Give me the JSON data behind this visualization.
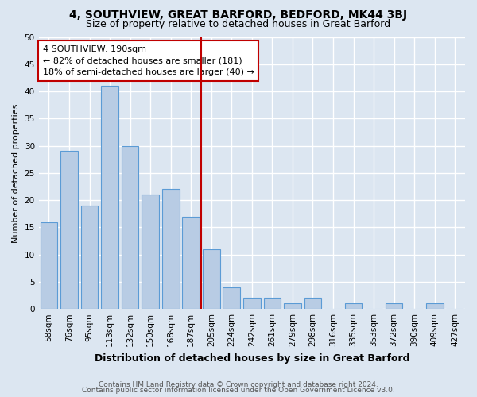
{
  "title": "4, SOUTHVIEW, GREAT BARFORD, BEDFORD, MK44 3BJ",
  "subtitle": "Size of property relative to detached houses in Great Barford",
  "xlabel": "Distribution of detached houses by size in Great Barford",
  "ylabel": "Number of detached properties",
  "categories": [
    "58sqm",
    "76sqm",
    "95sqm",
    "113sqm",
    "132sqm",
    "150sqm",
    "168sqm",
    "187sqm",
    "205sqm",
    "224sqm",
    "242sqm",
    "261sqm",
    "279sqm",
    "298sqm",
    "316sqm",
    "335sqm",
    "353sqm",
    "372sqm",
    "390sqm",
    "409sqm",
    "427sqm"
  ],
  "values": [
    16,
    29,
    19,
    41,
    30,
    21,
    22,
    17,
    11,
    4,
    2,
    2,
    1,
    2,
    0,
    1,
    0,
    1,
    0,
    1,
    0
  ],
  "bar_color": "#b8cce4",
  "bar_edge_color": "#5b9bd5",
  "background_color": "#dce6f1",
  "plot_bg_color": "#dce6f1",
  "grid_color": "#ffffff",
  "vline_color": "#c00000",
  "annotation_text": "4 SOUTHVIEW: 190sqm\n← 82% of detached houses are smaller (181)\n18% of semi-detached houses are larger (40) →",
  "annotation_box_color": "#c00000",
  "ylim": [
    0,
    50
  ],
  "yticks": [
    0,
    5,
    10,
    15,
    20,
    25,
    30,
    35,
    40,
    45,
    50
  ],
  "footer_line1": "Contains HM Land Registry data © Crown copyright and database right 2024.",
  "footer_line2": "Contains public sector information licensed under the Open Government Licence v3.0.",
  "title_fontsize": 10,
  "subtitle_fontsize": 9,
  "xlabel_fontsize": 9,
  "ylabel_fontsize": 8,
  "tick_fontsize": 7.5,
  "annotation_fontsize": 8,
  "footer_fontsize": 6.5
}
